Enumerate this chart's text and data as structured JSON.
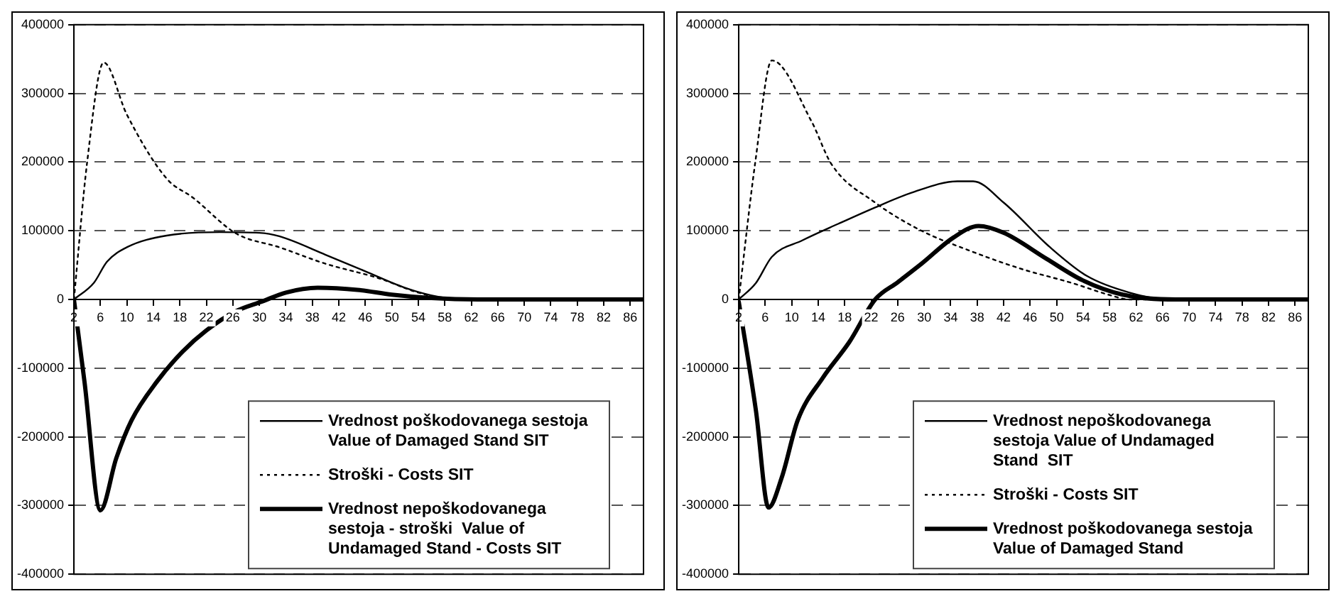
{
  "chart_data": [
    {
      "type": "line",
      "xlim": [
        2,
        88
      ],
      "xticks": [
        2,
        6,
        10,
        14,
        18,
        22,
        26,
        30,
        34,
        38,
        42,
        46,
        50,
        54,
        58,
        62,
        66,
        70,
        74,
        78,
        82,
        86
      ],
      "ylim": [
        -400000,
        400000
      ],
      "yticks": [
        -400000,
        -300000,
        -200000,
        -100000,
        0,
        100000,
        200000,
        300000,
        400000
      ],
      "grid": "y",
      "legend": "bottom right",
      "marker": "none",
      "series": [
        {
          "name": "Vrednost poškodovanega sestoja Value of Damaged Stand SIT",
          "color": "#000000",
          "line_style": "solid",
          "x": [
            2,
            5,
            7,
            10,
            16,
            24,
            30,
            33,
            40,
            46,
            52,
            57,
            62,
            88
          ],
          "values": [
            0,
            24000,
            55000,
            76000,
            93000,
            98000,
            97000,
            92000,
            65000,
            41000,
            17000,
            4000,
            0,
            0
          ]
        },
        {
          "name": "Stroški - Costs SIT",
          "color": "#000000",
          "line_style": "dotted",
          "x": [
            2,
            4,
            6.5,
            10,
            16,
            20,
            26.5,
            33,
            40,
            48,
            54,
            59,
            88
          ],
          "values": [
            0,
            200000,
            345000,
            269000,
            176000,
            148000,
            96000,
            76000,
            52000,
            31000,
            10000,
            0,
            0
          ]
        },
        {
          "name": "Vrednost nepoškodovanega sestoja - stroški  Value of Undamaged Stand - Costs SIT",
          "color": "#000000",
          "line_style": "solid",
          "x": [
            2,
            3.6,
            6,
            8.4,
            10.7,
            14.5,
            18.4,
            22,
            26.5,
            30.4,
            34,
            38.8,
            44.8,
            50,
            56,
            63,
            88
          ],
          "values": [
            0,
            -120000,
            -307000,
            -231000,
            -176000,
            -120000,
            -76000,
            -45000,
            -17000,
            -3000,
            10000,
            17000,
            14000,
            7000,
            2000,
            0,
            0
          ]
        }
      ]
    },
    {
      "type": "line",
      "xlim": [
        2,
        88
      ],
      "xticks": [
        2,
        6,
        10,
        14,
        18,
        22,
        26,
        30,
        34,
        38,
        42,
        46,
        50,
        54,
        58,
        62,
        66,
        70,
        74,
        78,
        82,
        86
      ],
      "ylim": [
        -400000,
        400000
      ],
      "yticks": [
        -400000,
        -300000,
        -200000,
        -100000,
        0,
        100000,
        200000,
        300000,
        400000
      ],
      "grid": "y",
      "legend": "bottom right",
      "marker": "none",
      "series": [
        {
          "name": "Vrednost nepoškodovanega sestoja Value of Undamaged Stand  SIT",
          "color": "#000000",
          "line_style": "solid",
          "x": [
            2,
            4.6,
            7,
            11.6,
            17,
            22.6,
            28,
            35,
            37.4,
            42,
            49,
            54.6,
            61,
            67,
            88
          ],
          "values": [
            0,
            24000,
            62000,
            86000,
            110000,
            134000,
            155000,
            172000,
            172000,
            141000,
            76000,
            34000,
            10000,
            0,
            0
          ]
        },
        {
          "name": "Stroški - Costs SIT",
          "color": "#000000",
          "line_style": "dotted",
          "x": [
            2,
            4.5,
            7,
            13,
            16,
            22.6,
            29.6,
            36.6,
            44.5,
            52.3,
            57.8,
            61,
            88
          ],
          "values": [
            0,
            200000,
            348000,
            259000,
            197000,
            141000,
            100000,
            72000,
            45000,
            24000,
            7000,
            0,
            0
          ]
        },
        {
          "name": "Vrednost poškodovanega sestoja Value of Damaged Stand",
          "color": "#000000",
          "line_style": "solid",
          "x": [
            2,
            4.6,
            6.5,
            8.5,
            10.9,
            14.7,
            18.7,
            22.6,
            26,
            29.6,
            34.4,
            38.2,
            42,
            48.5,
            53.9,
            60,
            68,
            88
          ],
          "values": [
            -3000,
            -162000,
            -303000,
            -259000,
            -176000,
            -114000,
            -62000,
            0,
            25000,
            52000,
            90000,
            107000,
            97000,
            59000,
            28000,
            7000,
            0,
            0
          ]
        }
      ]
    }
  ]
}
